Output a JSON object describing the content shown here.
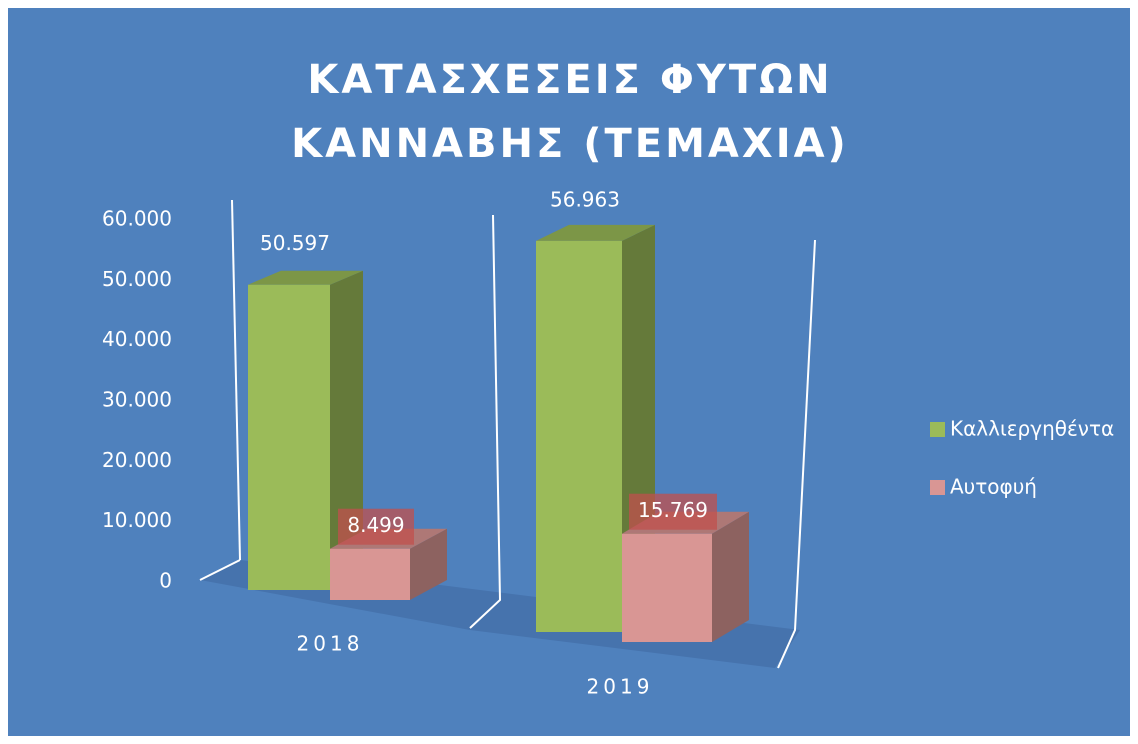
{
  "chart_data": {
    "type": "bar3d",
    "title": "ΚΑΤΑΣΧΕΣΕΙΣ ΦΥΤΩΝ ΚΑΝΝΑΒΗΣ (ΤΕΜΑΧΙΑ)",
    "categories": [
      "2018",
      "2019"
    ],
    "series": [
      {
        "name": "Καλλιεργηθέντα",
        "color": "#9bbb59",
        "values": [
          50597,
          56963
        ],
        "value_labels": [
          "50.597",
          "56.963"
        ]
      },
      {
        "name": "Αυτοφυή",
        "color": "#d99694",
        "values": [
          8499,
          15769
        ],
        "value_labels": [
          "8.499",
          "15.769"
        ]
      }
    ],
    "ylim": [
      0,
      60000
    ],
    "yticks": [
      {
        "value": 0,
        "label": "0"
      },
      {
        "value": 10000,
        "label": "10.000"
      },
      {
        "value": 20000,
        "label": "20.000"
      },
      {
        "value": 30000,
        "label": "30.000"
      },
      {
        "value": 40000,
        "label": "40.000"
      },
      {
        "value": 50000,
        "label": "50.000"
      },
      {
        "value": 60000,
        "label": "60.000"
      }
    ],
    "grid": false,
    "legend": "right"
  }
}
